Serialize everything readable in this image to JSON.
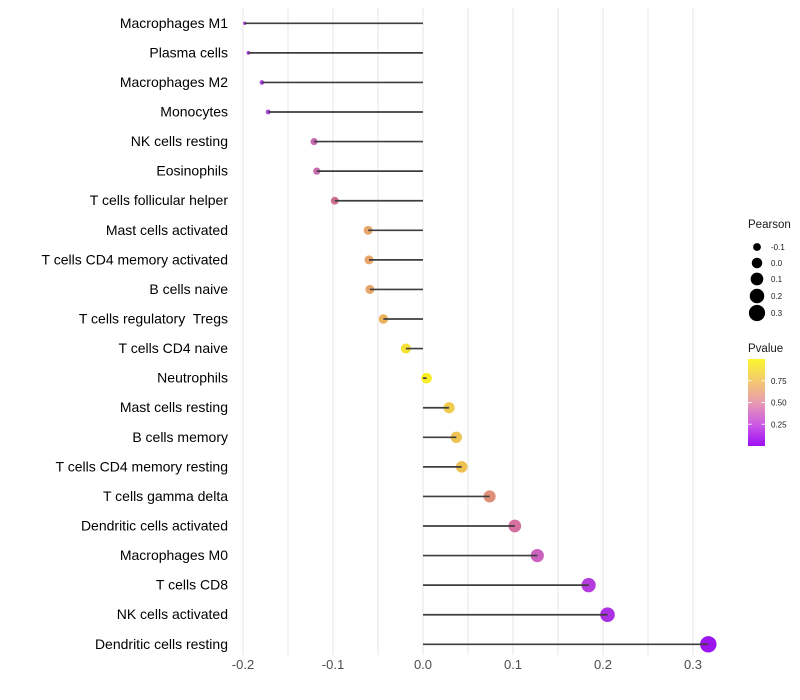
{
  "chart_data": {
    "type": "scatter",
    "variant": "horizontal-lollipop",
    "title": "",
    "xlabel": "",
    "ylabel": "",
    "x_ticks": [
      -0.2,
      -0.1,
      0.0,
      0.1,
      0.2,
      0.3
    ],
    "x_minor_step": 0.05,
    "xlim": [
      -0.208,
      0.333
    ],
    "grid": "vertical-only",
    "legend_position": "right",
    "categories": [
      "Macrophages M1",
      "Plasma cells",
      "Macrophages M2",
      "Monocytes",
      "NK cells resting",
      "Eosinophils",
      "T cells follicular helper",
      "Mast cells activated",
      "T cells CD4 memory activated",
      "B cells naive",
      "T cells regulatory  Tregs",
      "T cells CD4 naive",
      "Neutrophils",
      "Mast cells resting",
      "B cells memory",
      "T cells CD4 memory resting",
      "T cells gamma delta",
      "Dendritic cells activated",
      "Macrophages M0",
      "T cells CD8",
      "NK cells activated",
      "Dendritic cells resting"
    ],
    "series": [
      {
        "name": "Pearson",
        "values": [
          -0.198,
          -0.194,
          -0.179,
          -0.172,
          -0.121,
          -0.118,
          -0.098,
          -0.061,
          -0.06,
          -0.059,
          -0.044,
          -0.019,
          0.004,
          0.029,
          0.037,
          0.043,
          0.074,
          0.102,
          0.127,
          0.184,
          0.205,
          0.317
        ]
      }
    ],
    "point_colors": [
      "#A63BE1",
      "#A83EE0",
      "#AC45DE",
      "#AF49DC",
      "#C868B0",
      "#C96AAD",
      "#D06F94",
      "#E9A76B",
      "#E9A66A",
      "#E9A569",
      "#ECB25B",
      "#F4E134",
      "#F9EE25",
      "#F0CC4F",
      "#EEC355",
      "#EEC152",
      "#DE9178",
      "#D5709F",
      "#CB63BE",
      "#B43CDF",
      "#AA30E3",
      "#9C15EF"
    ]
  },
  "legends": {
    "size": {
      "title": "Pearson",
      "entries": [
        "-0.1",
        "0.0",
        "0.1",
        "0.2",
        "0.3"
      ],
      "dot_color": "#000000"
    },
    "color": {
      "title": "Pvalue",
      "tick_labels": [
        "0.75",
        "0.50",
        "0.25"
      ],
      "tick_values": [
        0.75,
        0.5,
        0.25
      ],
      "range": [
        0,
        1
      ],
      "gradient_top_to_bottom": [
        "#FBF62C",
        "#F4CA6E",
        "#E89BB1",
        "#CB5BE4",
        "#9D0FF3"
      ]
    }
  },
  "colors": {
    "stem": "#3E3E3E",
    "grid": "#E5E5E5",
    "axis_text": "#4D4D4D",
    "label_text": "#000000"
  }
}
